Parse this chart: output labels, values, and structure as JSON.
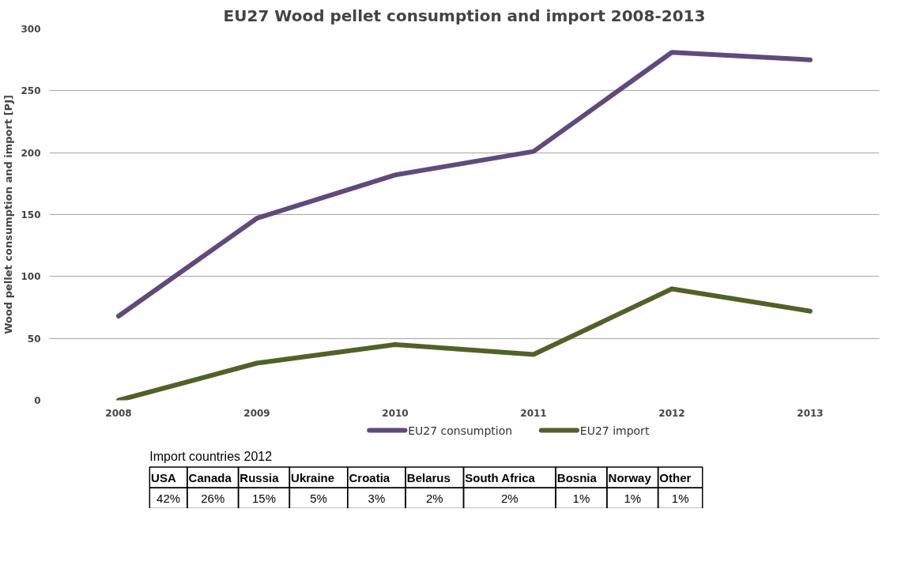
{
  "chart_data": [
    {
      "type": "line",
      "title": "EU27 Wood pellet consumption and import 2008-2013",
      "ylabel": "Wood pellet consumption and import [PJ]",
      "categories": [
        "2008",
        "2009",
        "2010",
        "2011",
        "2012",
        "2013"
      ],
      "series": [
        {
          "name": "EU27 consumption",
          "color": "#604a7b",
          "values": [
            68,
            147,
            182,
            201,
            281,
            275
          ]
        },
        {
          "name": "EU27 import",
          "color": "#4f6228",
          "values": [
            0,
            30,
            45,
            37,
            90,
            72
          ]
        }
      ],
      "ylim": [
        0,
        300
      ],
      "yticks": [
        0,
        50,
        100,
        150,
        200,
        250,
        300
      ],
      "grid": "y",
      "legend": "bottom",
      "marker": "none",
      "line_style": "solid"
    },
    {
      "type": "other",
      "title": "Import countries 2012",
      "categories": [
        "USA",
        "Canada",
        "Russia",
        "Ukraine",
        "Croatia",
        "Belarus",
        "South Africa",
        "Bosnia",
        "Norway",
        "Other"
      ],
      "values": [
        42,
        26,
        15,
        5,
        3,
        2,
        2,
        1,
        1,
        1
      ],
      "value_labels": [
        "42%",
        "26%",
        "15%",
        "5%",
        "3%",
        "2%",
        "2%",
        "1%",
        "1%",
        "1%"
      ]
    }
  ]
}
